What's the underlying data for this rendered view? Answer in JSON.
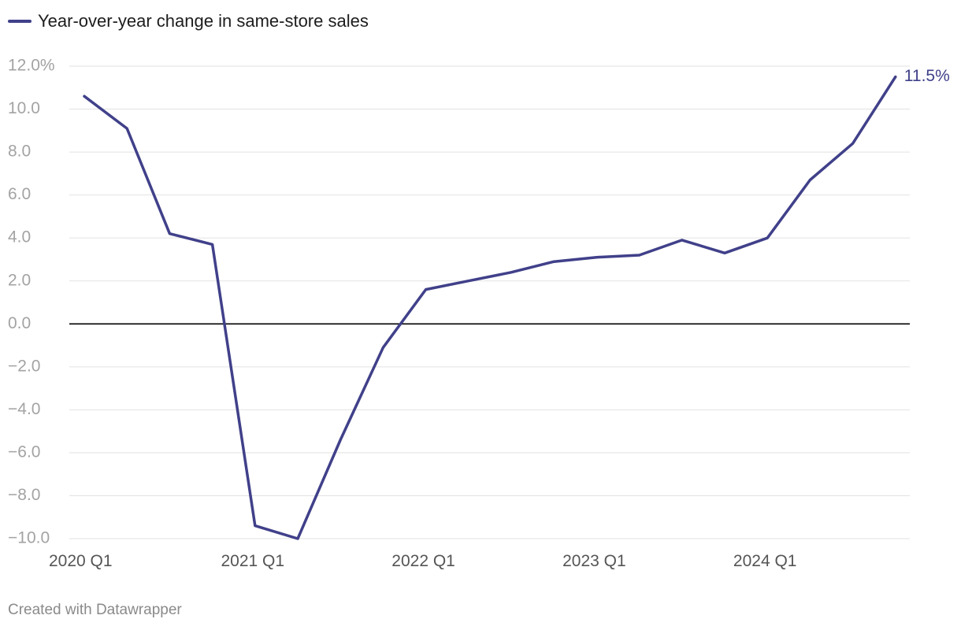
{
  "legend": {
    "label": "Year-over-year change in same-store sales"
  },
  "footer": {
    "credit": "Created with Datawrapper"
  },
  "colors": {
    "series": "#40408a",
    "grid": "#e2e2e2",
    "zero": "#000000",
    "tick_text": "#a3a3a3",
    "x_tick_text": "#555555"
  },
  "chart_data": {
    "type": "line",
    "title": "",
    "xlabel": "",
    "ylabel": "",
    "ylim": [
      -10,
      12
    ],
    "grid": true,
    "legend_position": "top-left",
    "y_ticks": [
      {
        "value": 12,
        "label": "12.0%"
      },
      {
        "value": 10,
        "label": "10.0"
      },
      {
        "value": 8,
        "label": "8.0"
      },
      {
        "value": 6,
        "label": "6.0"
      },
      {
        "value": 4,
        "label": "4.0"
      },
      {
        "value": 2,
        "label": "2.0"
      },
      {
        "value": 0,
        "label": "0.0"
      },
      {
        "value": -2,
        "label": "−2.0"
      },
      {
        "value": -4,
        "label": "−4.0"
      },
      {
        "value": -6,
        "label": "−6.0"
      },
      {
        "value": -8,
        "label": "−8.0"
      },
      {
        "value": -10,
        "label": "−10.0"
      }
    ],
    "x_tick_labels": [
      "2020 Q1",
      "2021 Q1",
      "2022 Q1",
      "2023 Q1",
      "2024 Q1"
    ],
    "categories": [
      "2020 Q1",
      "2020 Q2",
      "2020 Q3",
      "2020 Q4",
      "2021 Q1",
      "2021 Q2",
      "2021 Q3",
      "2021 Q4",
      "2022 Q1",
      "2022 Q2",
      "2022 Q3",
      "2022 Q4",
      "2023 Q1",
      "2023 Q2",
      "2023 Q3",
      "2023 Q4",
      "2024 Q1",
      "2024 Q2",
      "2024 Q3",
      "2024 Q4"
    ],
    "series": [
      {
        "name": "Year-over-year change in same-store sales",
        "values": [
          10.6,
          9.1,
          4.2,
          3.7,
          -9.4,
          -10.0,
          -5.4,
          -1.1,
          1.6,
          2.0,
          2.4,
          2.9,
          3.1,
          3.2,
          3.9,
          3.3,
          4.0,
          6.7,
          8.4,
          11.5
        ]
      }
    ],
    "end_label": "11.5%"
  }
}
